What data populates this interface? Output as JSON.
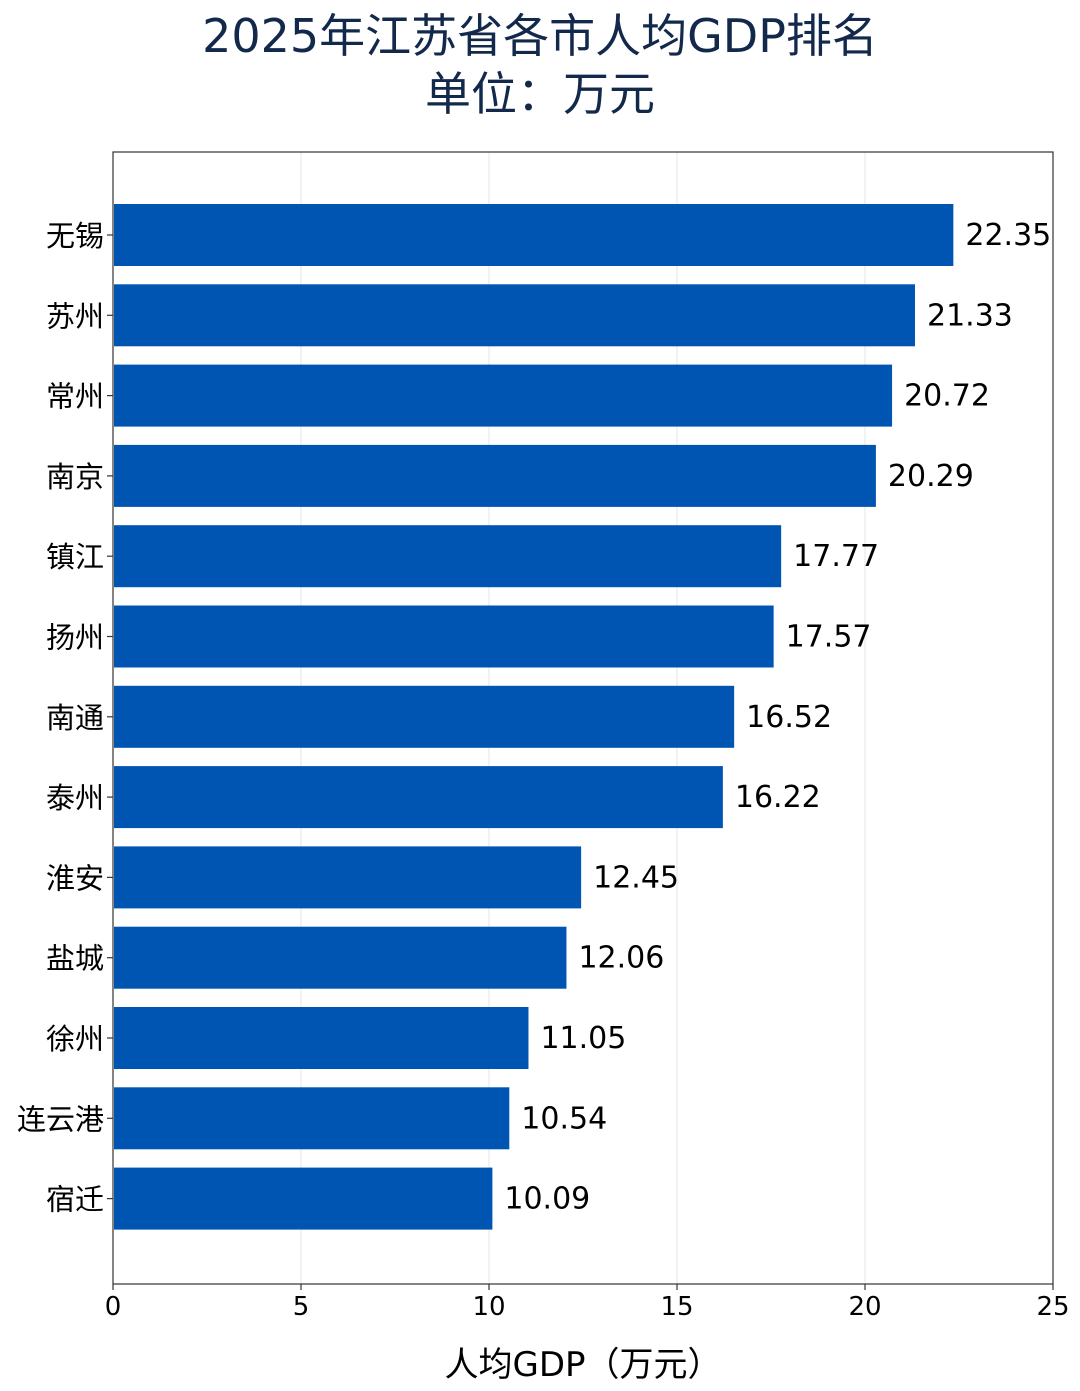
{
  "chart_data": {
    "type": "bar",
    "orientation": "horizontal",
    "title": "2025年江苏省各市人均GDP排名",
    "subtitle": "单位：万元",
    "xlabel": "人均GDP（万元）",
    "ylabel": "",
    "xlim": [
      0,
      25
    ],
    "xticks": [
      "0",
      "5",
      "10",
      "15",
      "20",
      "25"
    ],
    "grid": true,
    "bar_color": "#0055b3",
    "title_color": "#13294b",
    "categories": [
      "无锡",
      "苏州",
      "常州",
      "南京",
      "镇江",
      "扬州",
      "南通",
      "泰州",
      "淮安",
      "盐城",
      "徐州",
      "连云港",
      "宿迁"
    ],
    "values": [
      22.35,
      21.33,
      20.72,
      20.29,
      17.77,
      17.57,
      16.52,
      16.22,
      12.45,
      12.06,
      11.05,
      10.54,
      10.09
    ],
    "value_labels": [
      "22.35",
      "21.33",
      "20.72",
      "20.29",
      "17.77",
      "17.57",
      "16.52",
      "16.22",
      "12.45",
      "12.06",
      "11.05",
      "10.54",
      "10.09"
    ]
  }
}
